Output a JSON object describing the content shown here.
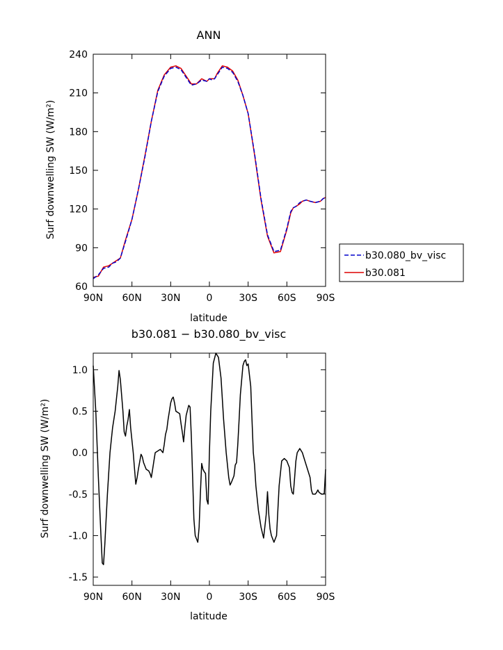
{
  "chart_data": [
    {
      "type": "line",
      "title": "ANN",
      "xlabel": "latitude",
      "ylabel": "Surf downwelling SW (W/m²)",
      "xlim": [
        90,
        -90
      ],
      "ylim": [
        60,
        240
      ],
      "x_ticks": [
        {
          "value": 90,
          "label": "90N"
        },
        {
          "value": 60,
          "label": "60N"
        },
        {
          "value": 30,
          "label": "30N"
        },
        {
          "value": 0,
          "label": "0"
        },
        {
          "value": -30,
          "label": "30S"
        },
        {
          "value": -60,
          "label": "60S"
        },
        {
          "value": -90,
          "label": "90S"
        }
      ],
      "y_ticks": [
        60,
        90,
        120,
        150,
        180,
        210,
        240
      ],
      "legend": "right",
      "series": [
        {
          "name": "b30.080_bv_visc",
          "color": "#0000cc",
          "dash": "dashed",
          "x": [
            90,
            86,
            82,
            78,
            75,
            72,
            69,
            65,
            60,
            55,
            50,
            45,
            40,
            35,
            30,
            26,
            22,
            18,
            14,
            10,
            6,
            2,
            0,
            -2,
            -4,
            -6,
            -10,
            -14,
            -18,
            -22,
            -26,
            -30,
            -35,
            -40,
            -45,
            -50,
            -55,
            -60,
            -63,
            -65,
            -67,
            -70,
            -72,
            -75,
            -78,
            -82,
            -86,
            -88,
            -90
          ],
          "y": [
            66,
            69,
            74,
            75,
            78,
            79,
            82,
            95,
            112,
            135,
            160,
            188,
            211,
            223,
            229,
            230,
            228,
            222,
            216,
            217,
            220,
            219,
            221,
            220,
            221,
            224,
            230,
            229,
            226,
            219,
            208,
            194,
            163,
            128,
            100,
            87,
            88,
            105,
            118,
            121,
            122,
            125,
            126,
            127,
            126,
            125,
            126,
            128,
            129
          ]
        },
        {
          "name": "b30.081",
          "color": "#dd0000",
          "dash": "solid",
          "x": [
            90,
            86,
            82,
            78,
            75,
            72,
            69,
            65,
            60,
            55,
            50,
            45,
            40,
            35,
            30,
            26,
            22,
            18,
            14,
            10,
            6,
            2,
            0,
            -2,
            -4,
            -6,
            -10,
            -14,
            -18,
            -22,
            -26,
            -30,
            -35,
            -40,
            -45,
            -50,
            -55,
            -60,
            -63,
            -65,
            -67,
            -70,
            -72,
            -75,
            -78,
            -82,
            -86,
            -88,
            -90
          ],
          "y": [
            67,
            68,
            75,
            76,
            78,
            80,
            82,
            96,
            112,
            135,
            161,
            188,
            212,
            224,
            230,
            231,
            229,
            223,
            217,
            217,
            221,
            219,
            221,
            221,
            221,
            225,
            231,
            230,
            227,
            220,
            208,
            194,
            162,
            127,
            99,
            86,
            87,
            104,
            117,
            121,
            122,
            124,
            126,
            127,
            126,
            125,
            126,
            128,
            129
          ]
        }
      ]
    },
    {
      "type": "line",
      "title": "b30.081 − b30.080_bv_visc",
      "xlabel": "latitude",
      "ylabel": "Surf downwelling SW (W/m²)",
      "xlim": [
        90,
        -90
      ],
      "ylim": [
        -1.6,
        1.2
      ],
      "x_ticks": [
        {
          "value": 90,
          "label": "90N"
        },
        {
          "value": 60,
          "label": "60N"
        },
        {
          "value": 30,
          "label": "30N"
        },
        {
          "value": 0,
          "label": "0"
        },
        {
          "value": -30,
          "label": "30S"
        },
        {
          "value": -60,
          "label": "60S"
        },
        {
          "value": -90,
          "label": "90S"
        }
      ],
      "y_ticks": [
        "-1.5",
        "-1.0",
        "-0.5",
        "0.0",
        "0.5",
        "1.0"
      ],
      "series": [
        {
          "color": "#000000",
          "dash": "solid",
          "x": [
            90,
            88,
            86,
            84,
            83,
            82,
            81,
            79,
            77,
            75,
            73,
            72,
            71,
            70,
            69,
            67,
            66,
            65,
            64,
            63,
            62,
            61,
            59,
            58,
            57,
            56,
            55,
            53,
            52,
            51,
            49,
            47,
            46,
            45,
            44,
            43,
            42,
            40,
            38,
            37,
            36,
            35,
            34,
            33,
            32,
            31,
            30,
            29,
            28,
            27,
            26,
            24,
            23,
            22,
            21,
            20,
            19,
            18,
            16,
            15,
            14,
            13,
            12,
            11,
            9,
            8,
            7,
            6,
            5,
            4,
            3,
            2,
            1,
            0,
            -1,
            -2,
            -3,
            -5,
            -7,
            -9,
            -11,
            -13,
            -15,
            -16,
            -17,
            -19,
            -20,
            -21,
            -22,
            -23,
            -24,
            -26,
            -27,
            -28,
            -29,
            -30,
            -32,
            -33,
            -34,
            -35,
            -36,
            -38,
            -40,
            -42,
            -44,
            -45,
            -46,
            -47,
            -48,
            -50,
            -52,
            -54,
            -56,
            -58,
            -60,
            -62,
            -63,
            -64,
            -65,
            -66,
            -67,
            -68,
            -70,
            -72,
            -74,
            -76,
            -78,
            -79,
            -80,
            -81,
            -82,
            -83,
            -84,
            -85,
            -86,
            -87,
            -88,
            -89,
            -90
          ],
          "y": [
            1.05,
            0.5,
            -0.3,
            -1.0,
            -1.33,
            -1.35,
            -1.1,
            -0.5,
            0.0,
            0.3,
            0.5,
            0.65,
            0.8,
            0.99,
            0.88,
            0.5,
            0.25,
            0.2,
            0.32,
            0.4,
            0.52,
            0.3,
            0.0,
            -0.2,
            -0.38,
            -0.3,
            -0.2,
            -0.02,
            -0.05,
            -0.12,
            -0.2,
            -0.22,
            -0.25,
            -0.3,
            -0.2,
            -0.1,
            0.0,
            0.02,
            0.04,
            0.02,
            0.0,
            0.1,
            0.22,
            0.28,
            0.4,
            0.5,
            0.6,
            0.65,
            0.67,
            0.6,
            0.5,
            0.48,
            0.47,
            0.35,
            0.25,
            0.13,
            0.3,
            0.45,
            0.57,
            0.55,
            0.2,
            -0.3,
            -0.8,
            -1.0,
            -1.08,
            -0.9,
            -0.5,
            -0.13,
            -0.2,
            -0.23,
            -0.25,
            -0.57,
            -0.62,
            0.0,
            0.5,
            0.78,
            1.08,
            1.2,
            1.15,
            0.9,
            0.4,
            0.0,
            -0.3,
            -0.39,
            -0.36,
            -0.28,
            -0.15,
            -0.12,
            0.1,
            0.4,
            0.7,
            1.05,
            1.1,
            1.12,
            1.05,
            1.07,
            0.8,
            0.4,
            0.0,
            -0.15,
            -0.4,
            -0.7,
            -0.9,
            -1.03,
            -0.75,
            -0.47,
            -0.75,
            -0.92,
            -1.0,
            -1.08,
            -1.0,
            -0.4,
            -0.1,
            -0.07,
            -0.1,
            -0.18,
            -0.4,
            -0.48,
            -0.5,
            -0.3,
            -0.1,
            0.0,
            0.05,
            0.0,
            -0.1,
            -0.2,
            -0.3,
            -0.45,
            -0.5,
            -0.5,
            -0.5,
            -0.48,
            -0.45,
            -0.48,
            -0.49,
            -0.5,
            -0.5,
            -0.49,
            -0.2
          ]
        }
      ]
    }
  ]
}
